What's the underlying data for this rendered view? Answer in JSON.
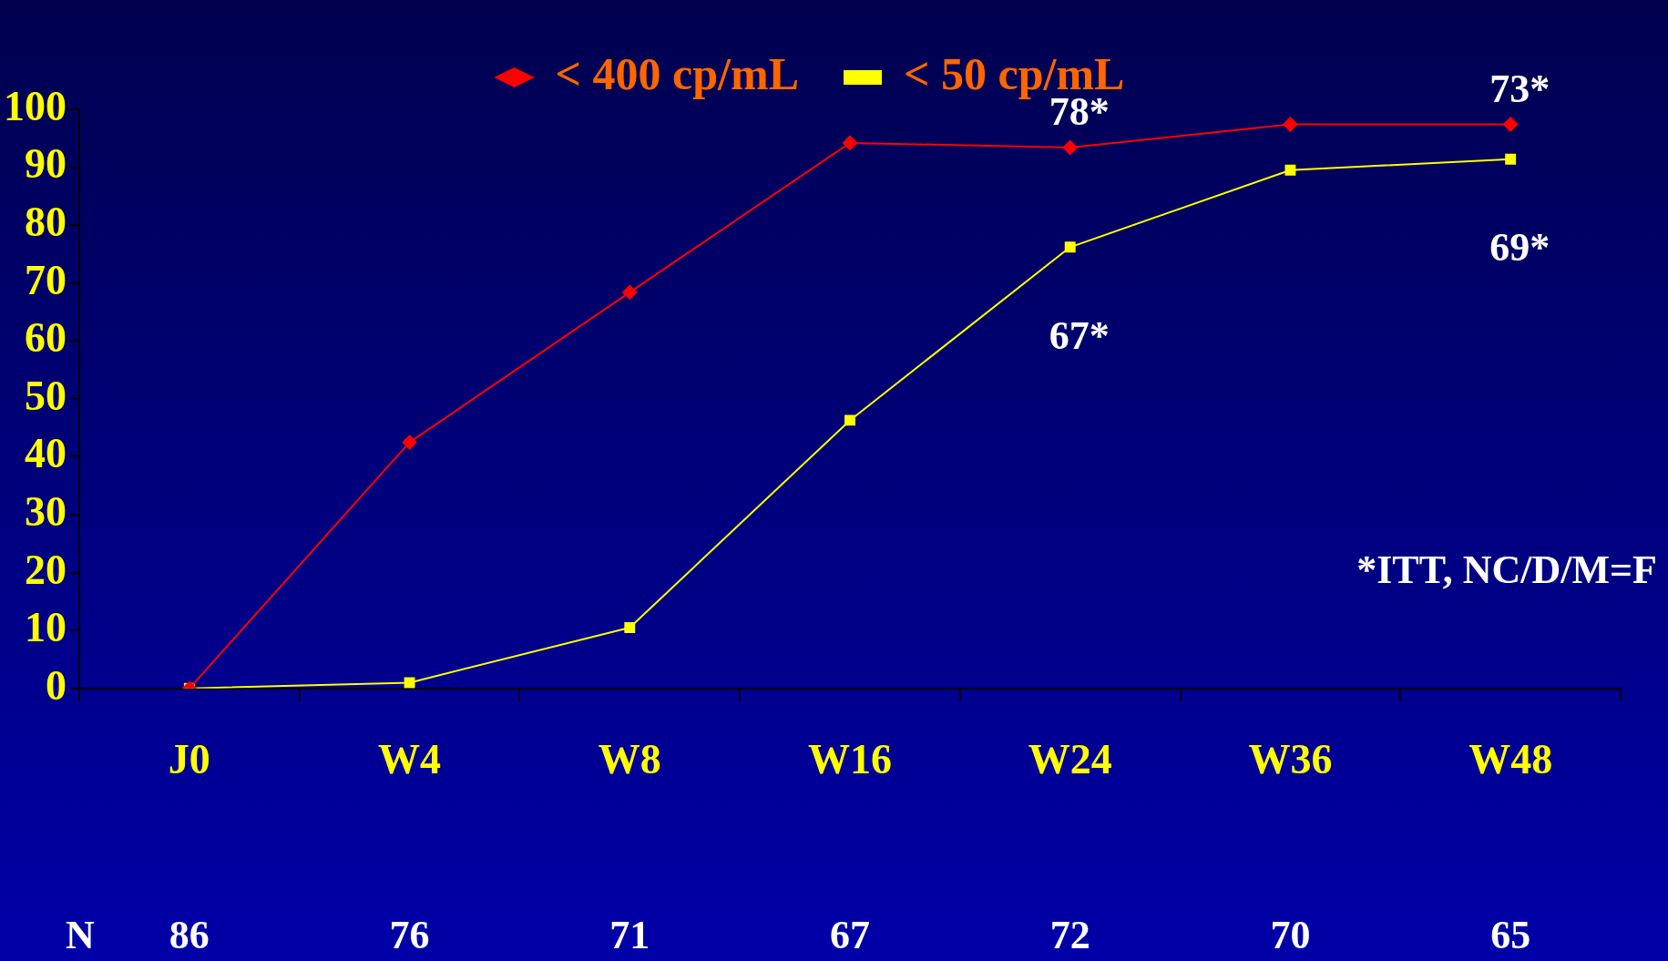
{
  "chart_data": {
    "type": "line",
    "categories": [
      "J0",
      "W4",
      "W8",
      "W16",
      "W24",
      "W36",
      "W48"
    ],
    "series": [
      {
        "name": "< 400 cp/mL",
        "color": "#ff0000",
        "marker": "diamond",
        "values": [
          0,
          42.5,
          68.4,
          94.2,
          93.4,
          97.4,
          97.4
        ]
      },
      {
        "name": "< 50 cp/mL",
        "color": "#ffff00",
        "marker": "square",
        "values": [
          0,
          1,
          10.5,
          46.3,
          76.2,
          89.5,
          91.4
        ]
      }
    ],
    "ylim": [
      0,
      100
    ],
    "yticks": [
      0,
      10,
      20,
      30,
      40,
      50,
      60,
      70,
      80,
      90,
      100
    ],
    "grid": false,
    "legend": "top",
    "annotations": [
      "*ITT, NC/D/M=F",
      {
        "text": "78*",
        "x": "W24",
        "y": 93.4
      },
      {
        "text": "73*",
        "x": "W48",
        "y": 97.4
      },
      {
        "text": "67*",
        "x": "W24",
        "y": 76.2
      },
      {
        "text": "69*",
        "x": "W48",
        "y": 91.4
      },
      "N",
      "86",
      "76",
      "71",
      "67",
      "72",
      "70",
      "65"
    ]
  }
}
